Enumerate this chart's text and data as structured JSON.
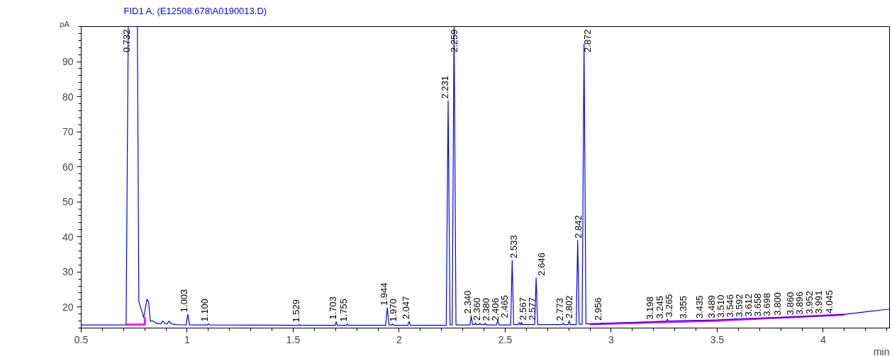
{
  "chart_data": {
    "type": "line",
    "title": "FID1 A,  (E12508.678\\A0190013.D)",
    "xlabel": "min",
    "ylabel": "pA",
    "xlim": [
      0.5,
      4.313
    ],
    "ylim": [
      14,
      100
    ],
    "xticks": [
      0.5,
      1,
      1.5,
      2,
      2.5,
      3,
      3.5,
      4
    ],
    "yticks": [
      20,
      30,
      40,
      50,
      60,
      70,
      80,
      90
    ],
    "grid": false,
    "marker": "none",
    "line_style": "solid",
    "series": [
      {
        "color": "#0000ff",
        "x": [
          0.5,
          0.7,
          0.712,
          0.722,
          0.765,
          0.772,
          0.795,
          0.81,
          0.818,
          0.826,
          0.84,
          0.85,
          0.875,
          0.885,
          0.895,
          0.905,
          0.915,
          0.925,
          0.95,
          0.995,
          1.003,
          1.011,
          1.095,
          1.1,
          1.105,
          1.525,
          1.529,
          1.533,
          1.698,
          1.703,
          1.708,
          1.75,
          1.755,
          1.76,
          1.936,
          1.944,
          1.952,
          1.966,
          1.97,
          1.974,
          2.041,
          2.047,
          2.053,
          2.222,
          2.231,
          2.24,
          2.25,
          2.259,
          2.268,
          2.334,
          2.34,
          2.346,
          2.357,
          2.36,
          2.364,
          2.377,
          2.38,
          2.384,
          2.403,
          2.406,
          2.41,
          2.459,
          2.465,
          2.471,
          2.526,
          2.533,
          2.54,
          2.563,
          2.567,
          2.571,
          2.574,
          2.577,
          2.581,
          2.639,
          2.646,
          2.653,
          2.769,
          2.773,
          2.777,
          2.797,
          2.802,
          2.807,
          2.835,
          2.842,
          2.849,
          2.863,
          2.872,
          2.881,
          2.952,
          2.956,
          2.96,
          3.0,
          3.198,
          3.26,
          3.265,
          3.27,
          3.5,
          3.6,
          3.8,
          4.0,
          4.1,
          4.2,
          4.313
        ],
        "values": [
          14.9,
          14.9,
          15,
          100,
          100,
          21.5,
          17,
          22.2,
          21.5,
          16,
          16,
          15.5,
          15.2,
          16,
          15.3,
          15.2,
          16,
          15.2,
          15,
          14.9,
          17.9,
          14.9,
          14.9,
          15.2,
          14.9,
          14.8,
          15,
          14.8,
          14.8,
          15.8,
          14.8,
          14.8,
          15.2,
          14.8,
          14.8,
          19.8,
          14.9,
          14.9,
          15.2,
          14.8,
          14.8,
          15.9,
          14.8,
          14.8,
          78.8,
          14.9,
          14.9,
          100,
          14.9,
          14.9,
          17.5,
          15,
          15,
          15.5,
          15,
          15,
          15.4,
          15,
          15,
          15.4,
          14.9,
          14.9,
          16.2,
          14.9,
          14.9,
          33.3,
          15,
          15,
          15.6,
          15,
          15,
          15.6,
          15,
          15,
          28.3,
          15,
          15,
          15.4,
          15,
          15,
          16.1,
          15,
          15,
          39,
          15.1,
          15.1,
          95,
          15.2,
          15.2,
          15.5,
          15.3,
          15.4,
          15.8,
          16,
          16.5,
          16,
          16.3,
          16.6,
          17,
          17.5,
          17.9,
          18.6,
          19.4
        ]
      },
      {
        "color": "#ff00ff",
        "x": [
          0.712,
          0.8,
          0.8,
          0.81,
          2.9,
          3.5,
          4.1
        ],
        "values": [
          15,
          15,
          17.1,
          null,
          15.1,
          16.1,
          17.8
        ]
      }
    ],
    "annotations": [
      {
        "text": "0.732",
        "x": 0.732,
        "y": 100
      },
      {
        "text": "1.003",
        "x": 1.003,
        "y": 17.9
      },
      {
        "text": "1.100",
        "x": 1.1,
        "y": 15.2
      },
      {
        "text": "1.529",
        "x": 1.529,
        "y": 15
      },
      {
        "text": "1.703",
        "x": 1.703,
        "y": 15.8
      },
      {
        "text": "1.755",
        "x": 1.755,
        "y": 15.2
      },
      {
        "text": "1.944",
        "x": 1.944,
        "y": 19.8
      },
      {
        "text": "1.970",
        "x": 1.97,
        "y": 15.2
      },
      {
        "text": "2.047",
        "x": 2.047,
        "y": 15.9
      },
      {
        "text": "2.231",
        "x": 2.231,
        "y": 78.8
      },
      {
        "text": "2.259",
        "x": 2.259,
        "y": 100
      },
      {
        "text": "2.340",
        "x": 2.34,
        "y": 17.5
      },
      {
        "text": "2.360",
        "x": 2.36,
        "y": 15.5
      },
      {
        "text": "2.380",
        "x": 2.38,
        "y": 15.4
      },
      {
        "text": "2.406",
        "x": 2.406,
        "y": 15.4
      },
      {
        "text": "2.465",
        "x": 2.465,
        "y": 16.2
      },
      {
        "text": "2.533",
        "x": 2.533,
        "y": 33.3
      },
      {
        "text": "2.567",
        "x": 2.567,
        "y": 15.6
      },
      {
        "text": "2.577",
        "x": 2.577,
        "y": 15.6
      },
      {
        "text": "2.646",
        "x": 2.646,
        "y": 28.3
      },
      {
        "text": "2.773",
        "x": 2.773,
        "y": 15.4
      },
      {
        "text": "2.802",
        "x": 2.802,
        "y": 16.1
      },
      {
        "text": "2.842",
        "x": 2.842,
        "y": 39
      },
      {
        "text": "2.872",
        "x": 2.872,
        "y": 95
      },
      {
        "text": "2.956",
        "x": 2.956,
        "y": 15.5
      },
      {
        "text": "3.198",
        "x": 3.198,
        "y": 15.8
      },
      {
        "text": "3.245",
        "x": 3.245,
        "y": 16
      },
      {
        "text": "3.265",
        "x": 3.265,
        "y": 16.5
      },
      {
        "text": "3.355",
        "x": 3.355,
        "y": 16
      },
      {
        "text": "3.435",
        "x": 3.435,
        "y": 16.1
      },
      {
        "text": "3.489",
        "x": 3.489,
        "y": 16.2
      },
      {
        "text": "3.510",
        "x": 3.51,
        "y": 16.3
      },
      {
        "text": "3.546",
        "x": 3.546,
        "y": 16.4
      },
      {
        "text": "3.592",
        "x": 3.592,
        "y": 16.5
      },
      {
        "text": "3.612",
        "x": 3.612,
        "y": 16.6
      },
      {
        "text": "3.658",
        "x": 3.658,
        "y": 16.7
      },
      {
        "text": "3.698",
        "x": 3.698,
        "y": 16.8
      },
      {
        "text": "3.800",
        "x": 3.8,
        "y": 17
      },
      {
        "text": "3.860",
        "x": 3.86,
        "y": 17.1
      },
      {
        "text": "3.896",
        "x": 3.896,
        "y": 17.2
      },
      {
        "text": "3.952",
        "x": 3.952,
        "y": 17.4
      },
      {
        "text": "3.991",
        "x": 3.991,
        "y": 17.5
      },
      {
        "text": "4.045",
        "x": 4.045,
        "y": 17.6
      }
    ]
  }
}
